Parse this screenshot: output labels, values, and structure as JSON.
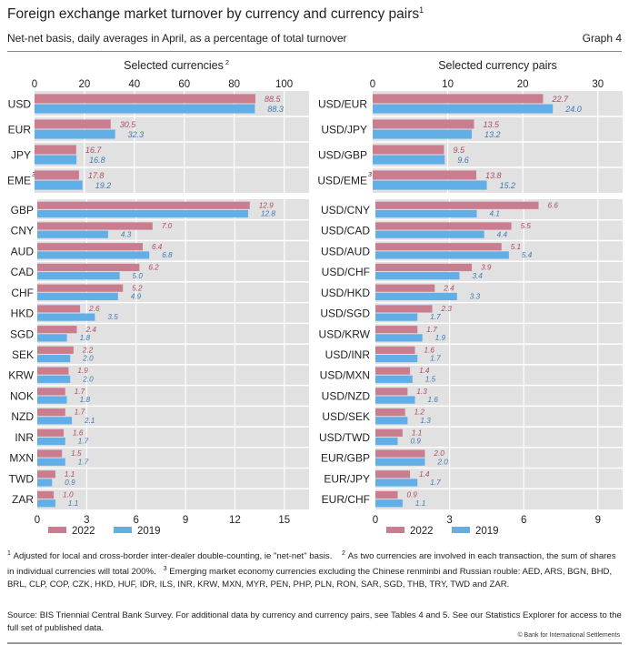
{
  "header": {
    "title": "Foreign exchange market turnover by currency and currency pairs",
    "title_sup": "1",
    "subtitle": "Net-net basis, daily averages in April, as a percentage of total turnover",
    "graph_number": "Graph 4"
  },
  "colors": {
    "series_2022": "#c97d8f",
    "series_2019": "#62aee6",
    "label_2022": "#b0495e",
    "label_2019": "#3f78b5",
    "plot_bg": "#e1e1e1",
    "grid": "#ffffff"
  },
  "chart_data": [
    {
      "type": "bar",
      "orientation": "horizontal",
      "title": "Selected currencies",
      "title_sup": "2",
      "axis_position": "top",
      "xlim": [
        0,
        110
      ],
      "ticks": [
        0,
        20,
        40,
        60,
        80,
        100
      ],
      "categories": [
        "USD",
        "EUR",
        "JPY",
        "EME"
      ],
      "category_sups": [
        "",
        "",
        "",
        "3"
      ],
      "series": [
        {
          "name": "2022",
          "values": [
            88.5,
            30.5,
            16.7,
            17.8
          ]
        },
        {
          "name": "2019",
          "values": [
            88.3,
            32.3,
            16.8,
            19.2
          ]
        }
      ],
      "grid": true
    },
    {
      "type": "bar",
      "orientation": "horizontal",
      "title": "",
      "axis_position": "bottom",
      "xlim": [
        0,
        16.5
      ],
      "ticks": [
        0,
        3,
        6,
        9,
        12,
        15
      ],
      "categories": [
        "GBP",
        "CNY",
        "AUD",
        "CAD",
        "CHF",
        "HKD",
        "SGD",
        "SEK",
        "KRW",
        "NOK",
        "NZD",
        "INR",
        "MXN",
        "TWD",
        "ZAR"
      ],
      "series": [
        {
          "name": "2022",
          "values": [
            12.9,
            7.0,
            6.4,
            6.2,
            5.2,
            2.6,
            2.4,
            2.2,
            1.9,
            1.7,
            1.7,
            1.6,
            1.5,
            1.1,
            1.0
          ]
        },
        {
          "name": "2019",
          "values": [
            12.8,
            4.3,
            6.8,
            5.0,
            4.9,
            3.5,
            1.8,
            2.0,
            2.0,
            1.8,
            2.1,
            1.7,
            1.7,
            0.9,
            1.1
          ]
        }
      ],
      "grid": true,
      "legend": {
        "position": "bottom",
        "entries": [
          "2022",
          "2019"
        ]
      }
    },
    {
      "type": "bar",
      "orientation": "horizontal",
      "title": "Selected currency pairs",
      "axis_position": "top",
      "xlim": [
        0,
        33.3
      ],
      "ticks": [
        0,
        10,
        20,
        30
      ],
      "categories": [
        "USD/EUR",
        "USD/JPY",
        "USD/GBP",
        "USD/EME"
      ],
      "category_sups": [
        "",
        "",
        "",
        "3"
      ],
      "series": [
        {
          "name": "2022",
          "values": [
            22.7,
            13.5,
            9.5,
            13.8
          ]
        },
        {
          "name": "2019",
          "values": [
            24.0,
            13.2,
            9.6,
            15.2
          ]
        }
      ],
      "grid": true
    },
    {
      "type": "bar",
      "orientation": "horizontal",
      "title": "",
      "axis_position": "bottom",
      "xlim": [
        0,
        10
      ],
      "ticks": [
        0,
        3,
        6,
        9
      ],
      "categories": [
        "USD/CNY",
        "USD/CAD",
        "USD/AUD",
        "USD/CHF",
        "USD/HKD",
        "USD/SGD",
        "USD/KRW",
        "USD/INR",
        "USD/MXN",
        "USD/NZD",
        "USD/SEK",
        "USD/TWD",
        "EUR/GBP",
        "EUR/JPY",
        "EUR/CHF"
      ],
      "series": [
        {
          "name": "2022",
          "values": [
            6.6,
            5.5,
            5.1,
            3.9,
            2.4,
            2.3,
            1.7,
            1.6,
            1.4,
            1.3,
            1.2,
            1.1,
            2.0,
            1.4,
            0.9
          ]
        },
        {
          "name": "2019",
          "values": [
            4.1,
            4.4,
            5.4,
            3.4,
            3.3,
            1.7,
            1.9,
            1.7,
            1.5,
            1.6,
            1.3,
            0.9,
            2.0,
            1.7,
            1.1
          ]
        }
      ],
      "grid": true,
      "legend": {
        "position": "bottom",
        "entries": [
          "2022",
          "2019"
        ]
      }
    }
  ],
  "footnotes": {
    "n1_mark": "1",
    "n1": "Adjusted for local and cross-border inter-dealer double-counting, ie \"net-net\" basis.",
    "n2_mark": "2",
    "n2": "As two currencies are involved in each transaction, the sum of shares in individual currencies will total 200%.",
    "n3_mark": "3",
    "n3": "Emerging market economy currencies excluding the Chinese renminbi and Russian rouble: AED, ARS, BGN, BHD, BRL, CLP, COP, CZK, HKD, HUF, IDR, ILS, INR, KRW, MXN, MYR, PEN, PHP, PLN, RON, SAR, SGD, THB, TRY, TWD and ZAR.",
    "source": "Source: BIS Triennial Central Bank Survey. For additional data by currency and currency pairs, see Tables 4 and 5. See our Statistics Explorer for access to the full set of published data.",
    "copyright": "© Bank for International Settlements"
  }
}
